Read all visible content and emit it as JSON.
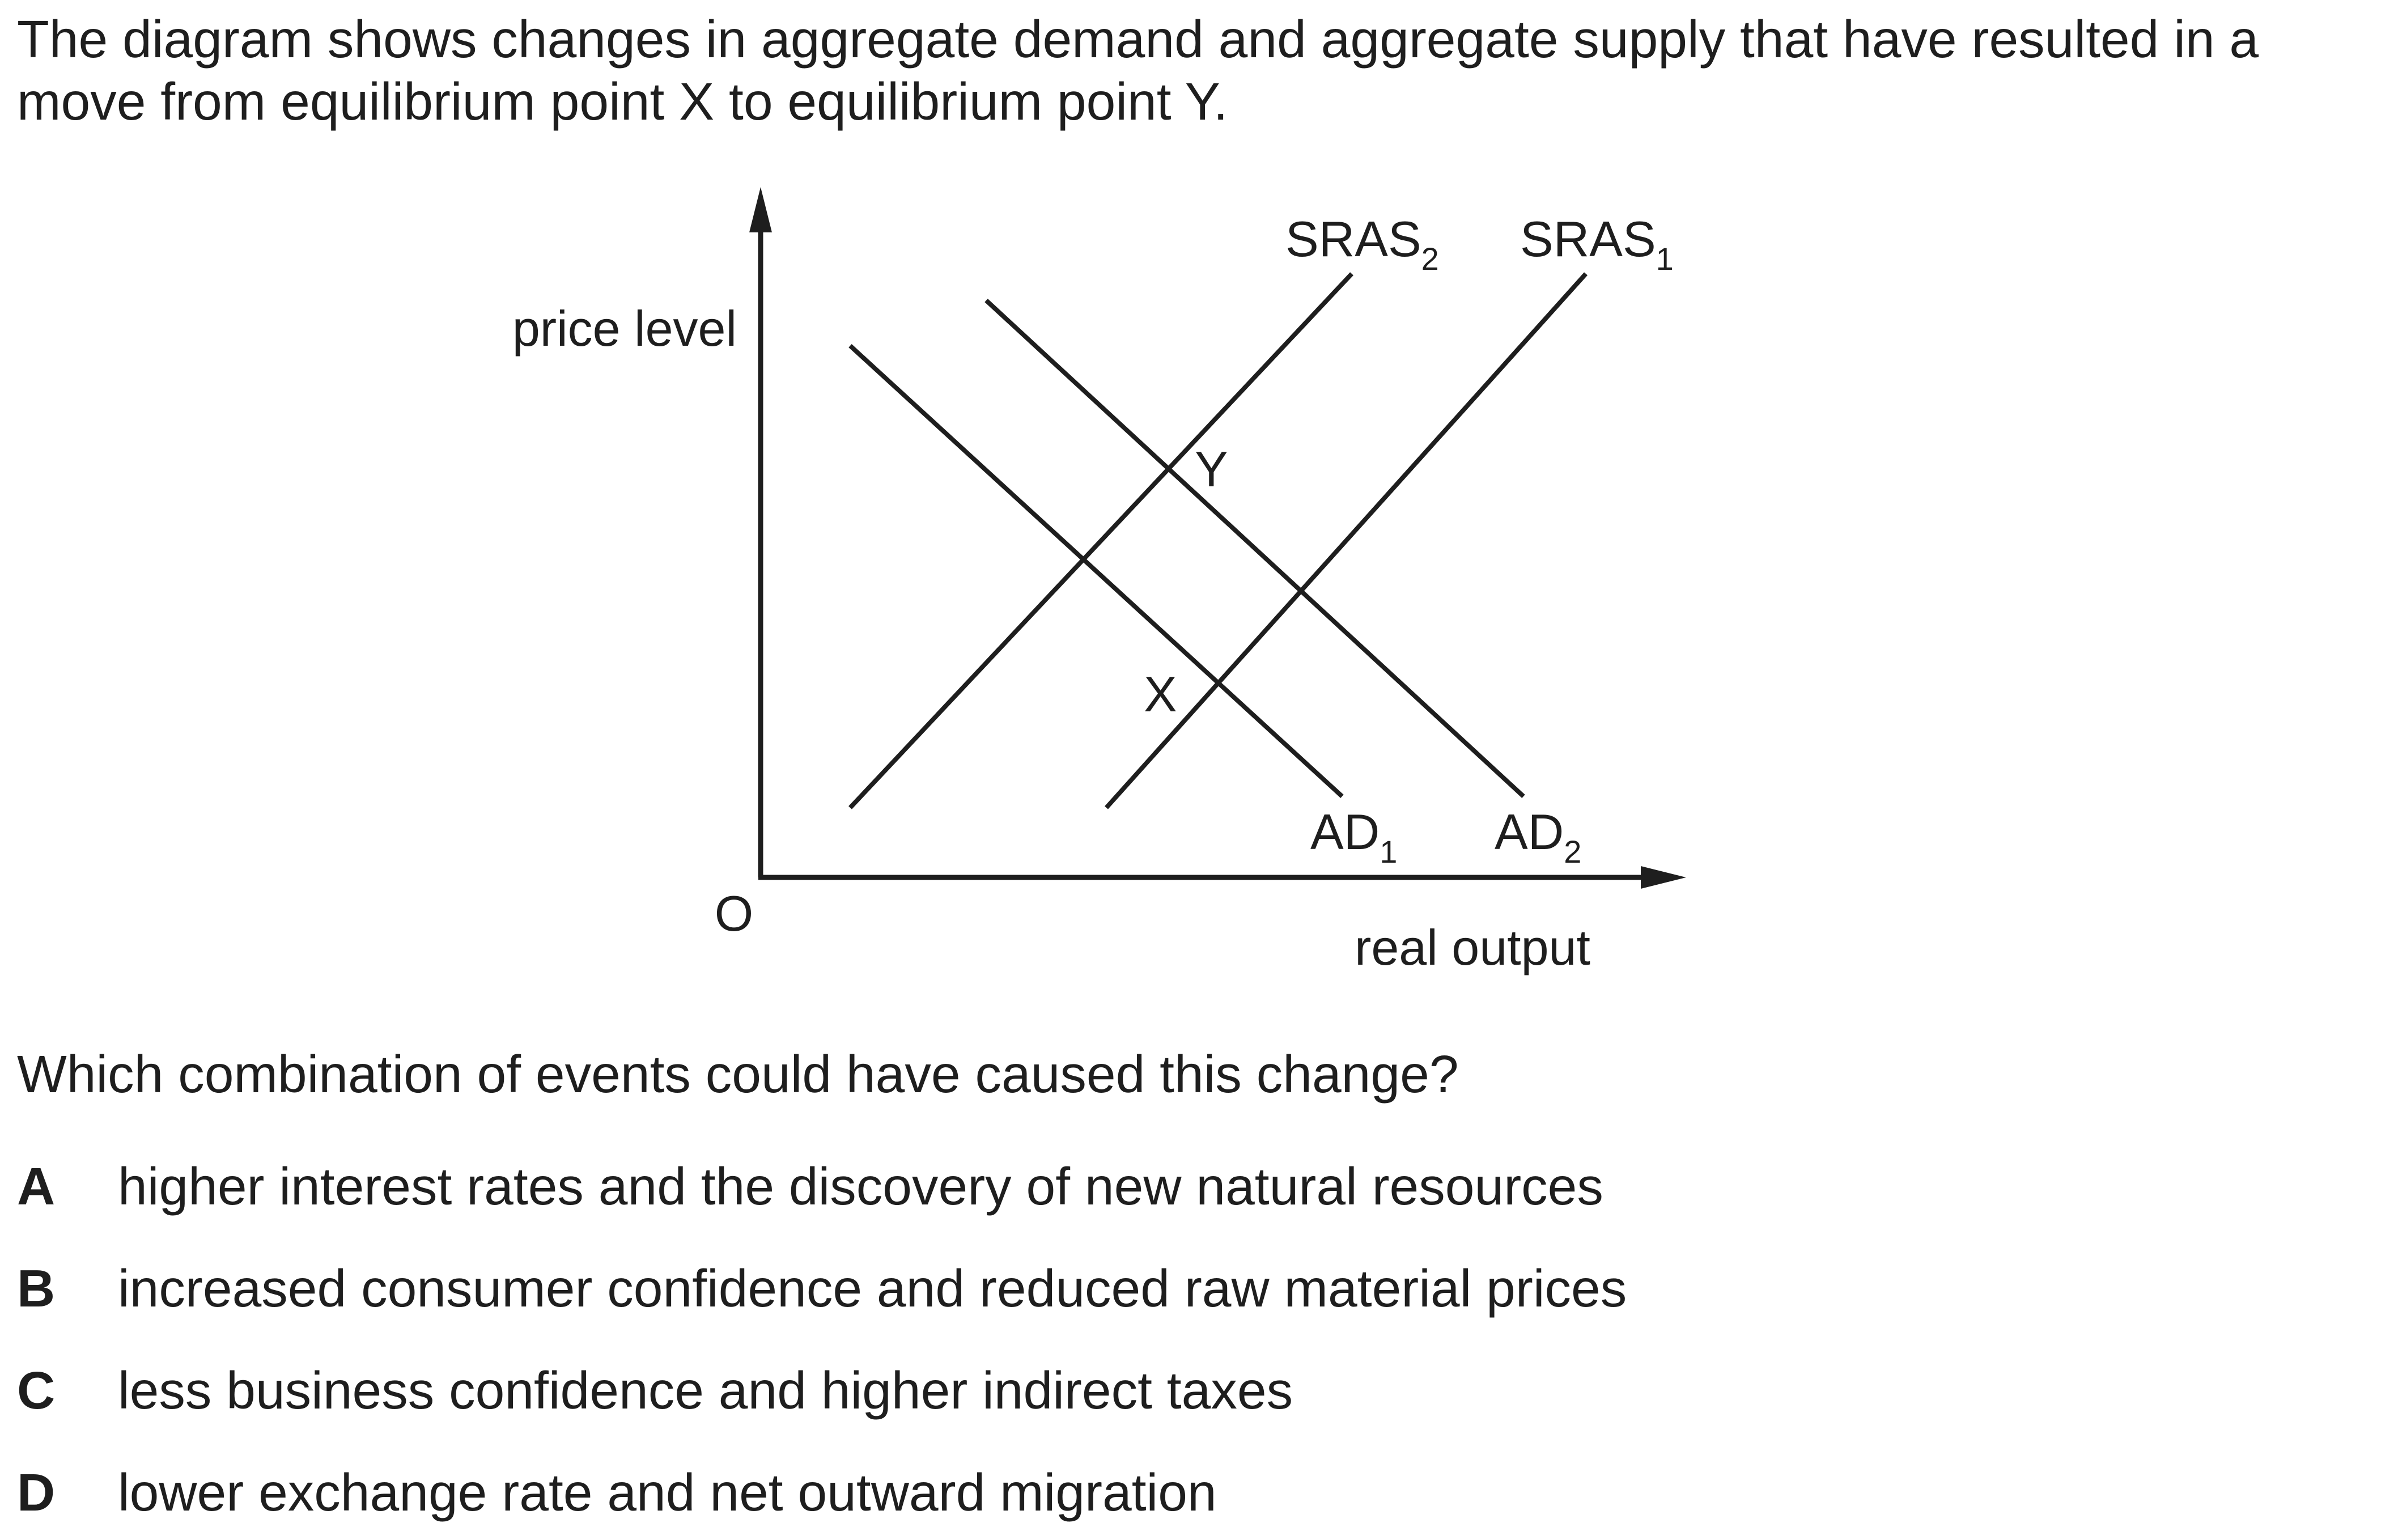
{
  "intro_text": "The diagram shows changes in aggregate demand and aggregate supply that have resulted in a move from equilibrium point X to equilibrium point Y.",
  "diagram": {
    "y_axis_label": "price level",
    "x_axis_label": "real output",
    "origin_label": "O",
    "curves": {
      "sras2": {
        "base": "SRAS",
        "sub": "2"
      },
      "sras1": {
        "base": "SRAS",
        "sub": "1"
      },
      "ad1": {
        "base": "AD",
        "sub": "1"
      },
      "ad2": {
        "base": "AD",
        "sub": "2"
      }
    },
    "points": {
      "x": "X",
      "y": "Y"
    }
  },
  "question": "Which combination of events could have caused this change?",
  "options": [
    {
      "key": "A",
      "text": "higher interest rates and the discovery of new natural resources"
    },
    {
      "key": "B",
      "text": "increased consumer confidence and reduced raw material prices"
    },
    {
      "key": "C",
      "text": "less business confidence and higher indirect taxes"
    },
    {
      "key": "D",
      "text": "lower exchange rate and net outward migration"
    }
  ]
}
